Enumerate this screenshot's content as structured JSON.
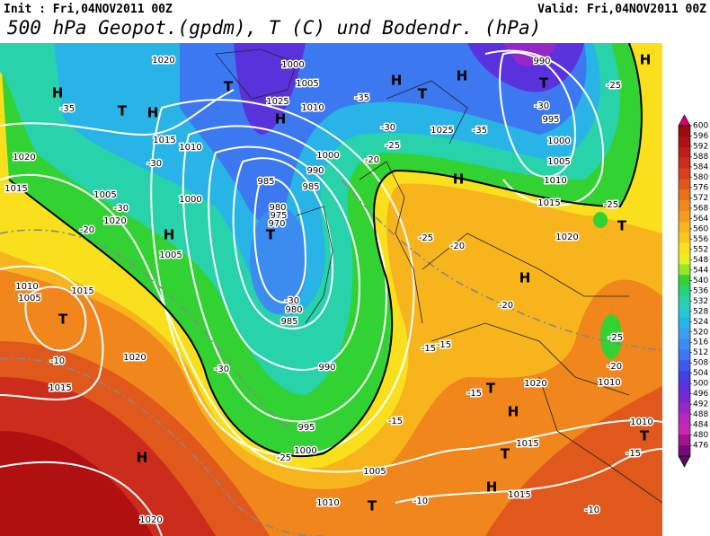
{
  "header": {
    "init": "Init : Fri,04NOV2011 00Z",
    "valid": "Valid: Fri,04NOV2011 00Z",
    "title": "500 hPa Geopot.(gpdm), T (C) und Bodendr. (hPa)"
  },
  "colorbar": {
    "ticks": [
      600,
      596,
      592,
      588,
      584,
      580,
      576,
      572,
      568,
      564,
      560,
      556,
      552,
      548,
      544,
      540,
      536,
      532,
      528,
      524,
      520,
      516,
      512,
      508,
      504,
      500,
      496,
      492,
      488,
      484,
      480,
      476
    ],
    "colors": [
      "#9b0a0a",
      "#b01010",
      "#c01c1c",
      "#cc2c1c",
      "#d6401c",
      "#e0581c",
      "#e8701c",
      "#f0861c",
      "#f59c1c",
      "#f8b41c",
      "#fac81c",
      "#fae01c",
      "#e6f01c",
      "#96e628",
      "#32d232",
      "#28d278",
      "#28d2aa",
      "#28c8d2",
      "#28b4e6",
      "#3ca0f0",
      "#3c8cf0",
      "#3c78f0",
      "#3c5af0",
      "#4040e6",
      "#5a32dc",
      "#7828d2",
      "#9628c8",
      "#b428be",
      "#c828b4",
      "#a0148c",
      "#780a78"
    ],
    "top_color": "#d2006e",
    "bottom_color": "#5a0a5a"
  },
  "map": {
    "labels": [
      "1020",
      "H",
      "T",
      "-35",
      "H",
      "1015",
      "1010",
      "-30",
      "1020",
      "1015",
      "1005",
      "1000",
      "-30",
      "1020",
      "-20",
      "H",
      "1005",
      "1010",
      "1005",
      "1015",
      "T",
      "-10",
      "1020",
      "1015",
      "H",
      "1020",
      "1000",
      "1005",
      "1010",
      "T",
      "H",
      "1025",
      "985",
      "990",
      "985",
      "1000",
      "980",
      "975",
      "970",
      "T",
      "-30",
      "980",
      "985",
      "990",
      "995",
      "1000",
      "-25",
      "-30",
      "1005",
      "1010",
      "T",
      "-10",
      "H",
      "T",
      "-35",
      "-30",
      "1025",
      "-25",
      "-20",
      "H",
      "-35",
      "H",
      "990",
      "T",
      "-30",
      "995",
      "1000",
      "1005",
      "1010",
      "1015",
      "-25",
      "H",
      "-25",
      "T",
      "1020",
      "-20",
      "-25",
      "H",
      "-20",
      "-15",
      "-15",
      "-15",
      "T",
      "1020",
      "H",
      "-15",
      "T",
      "1015",
      "H",
      "1015",
      "-10",
      "1010",
      "-25",
      "-20",
      "1010",
      "T",
      "-15"
    ]
  }
}
